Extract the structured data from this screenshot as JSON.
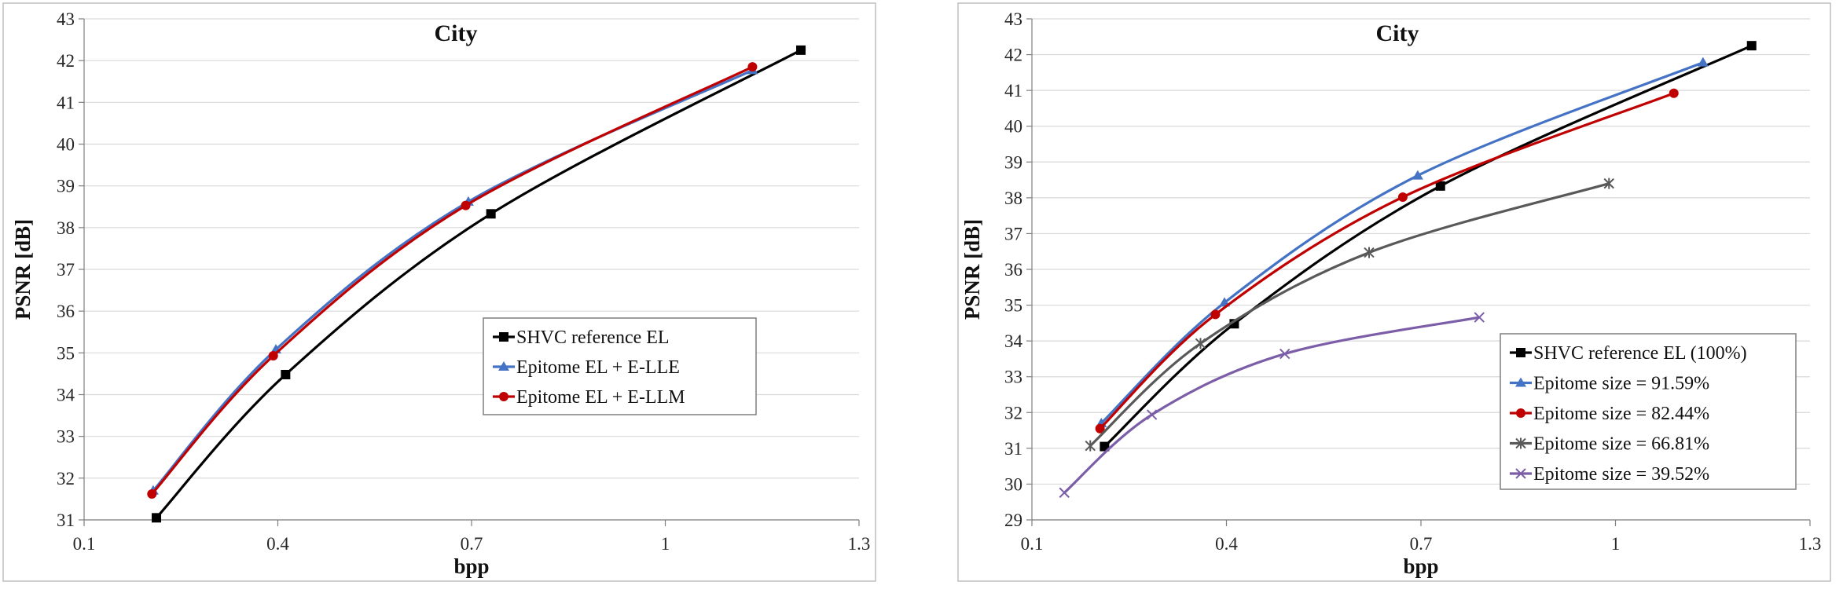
{
  "chart_data": [
    {
      "type": "line",
      "title": "City",
      "xlabel": "bpp",
      "ylabel": "PSNR [dB]",
      "xlim": [
        0.1,
        1.3
      ],
      "ylim": [
        31,
        43
      ],
      "xticks": [
        0.1,
        0.4,
        0.7,
        1,
        1.3
      ],
      "xtick_labels": [
        "0.1",
        "0.4",
        "0.7",
        "1",
        "1.3"
      ],
      "yticks": [
        31,
        32,
        33,
        34,
        35,
        36,
        37,
        38,
        39,
        40,
        41,
        42,
        43
      ],
      "ytick_labels": [
        "31",
        "32",
        "33",
        "34",
        "35",
        "36",
        "37",
        "38",
        "39",
        "40",
        "41",
        "42",
        "43"
      ],
      "grid": "horizontal",
      "legend_position": "right-center",
      "series": [
        {
          "name": "SHVC reference EL",
          "color": "#000000",
          "marker": "square",
          "x": [
            0.212,
            0.412,
            0.73,
            1.21
          ],
          "y": [
            31.05,
            34.48,
            38.33,
            42.25
          ]
        },
        {
          "name": "Epitome EL + E-LLE",
          "color": "#4472c4",
          "marker": "triangle",
          "x": [
            0.207,
            0.397,
            0.695,
            1.135
          ],
          "y": [
            31.7,
            35.08,
            38.62,
            41.77
          ]
        },
        {
          "name": "Epitome EL + E-LLM",
          "color": "#c00000",
          "marker": "circle",
          "x": [
            0.205,
            0.393,
            0.691,
            1.135
          ],
          "y": [
            31.62,
            34.93,
            38.53,
            41.85
          ]
        }
      ]
    },
    {
      "type": "line",
      "title": "City",
      "xlabel": "bpp",
      "ylabel": "PSNR [dB]",
      "xlim": [
        0.1,
        1.3
      ],
      "ylim": [
        29,
        43
      ],
      "xticks": [
        0.1,
        0.4,
        0.7,
        1,
        1.3
      ],
      "xtick_labels": [
        "0.1",
        "0.4",
        "0.7",
        "1",
        "1.3"
      ],
      "yticks": [
        29,
        30,
        31,
        32,
        33,
        34,
        35,
        36,
        37,
        38,
        39,
        40,
        41,
        42,
        43
      ],
      "ytick_labels": [
        "29",
        "30",
        "31",
        "32",
        "33",
        "34",
        "35",
        "36",
        "37",
        "38",
        "39",
        "40",
        "41",
        "42",
        "43"
      ],
      "grid": "horizontal",
      "legend_position": "bottom-right",
      "series": [
        {
          "name": "SHVC reference EL (100%)",
          "color": "#000000",
          "marker": "square",
          "x": [
            0.212,
            0.412,
            0.73,
            1.21
          ],
          "y": [
            31.05,
            34.48,
            38.33,
            42.25
          ]
        },
        {
          "name": "Epitome size = 91.59%",
          "color": "#4472c4",
          "marker": "triangle",
          "x": [
            0.207,
            0.397,
            0.695,
            1.135
          ],
          "y": [
            31.7,
            35.07,
            38.62,
            41.78
          ]
        },
        {
          "name": "Epitome size = 82.44%",
          "color": "#c00000",
          "marker": "circle",
          "x": [
            0.205,
            0.383,
            0.672,
            1.09
          ],
          "y": [
            31.55,
            34.74,
            38.02,
            40.92
          ]
        },
        {
          "name": "Epitome size = 66.81%",
          "color": "#595959",
          "marker": "star",
          "x": [
            0.19,
            0.36,
            0.62,
            0.99
          ],
          "y": [
            31.07,
            33.93,
            36.47,
            38.4
          ]
        },
        {
          "name": "Epitome size = 39.52%",
          "color": "#7b5ea7",
          "marker": "x",
          "x": [
            0.15,
            0.285,
            0.49,
            0.79
          ],
          "y": [
            29.76,
            31.94,
            33.64,
            34.66
          ]
        }
      ]
    }
  ]
}
